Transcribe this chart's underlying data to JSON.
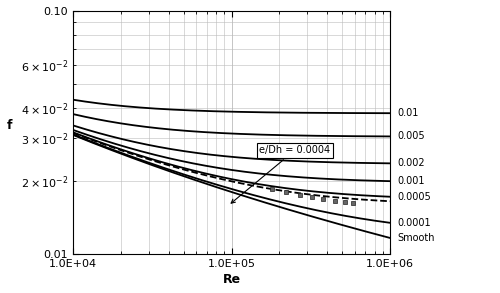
{
  "title": "",
  "xlabel": "Re",
  "ylabel": "f",
  "xlim": [
    10000.0,
    1000000.0
  ],
  "ylim": [
    0.01,
    0.1
  ],
  "roughness_values": [
    0.01,
    0.005,
    0.002,
    0.001,
    0.0005,
    0.0001,
    0.0
  ],
  "roughness_labels": [
    "0.01",
    "0.005",
    "0.002",
    "0.001",
    "0.0005",
    "0.0001",
    "Smooth"
  ],
  "highlighted_roughness": 0.0004,
  "annotation_text": "e/Dh = 0.0004",
  "background_color": "#ffffff",
  "line_color": "#000000",
  "grid_color": "#bbbbbb",
  "dashed_line_roughness": 0.0004,
  "data_scatter_Re": [
    180000.0,
    220000.0,
    270000.0,
    320000.0,
    380000.0,
    450000.0,
    520000.0,
    580000.0
  ],
  "data_scatter_f": [
    0.0185,
    0.018,
    0.0175,
    0.0171,
    0.0168,
    0.0165,
    0.0163,
    0.0162
  ]
}
